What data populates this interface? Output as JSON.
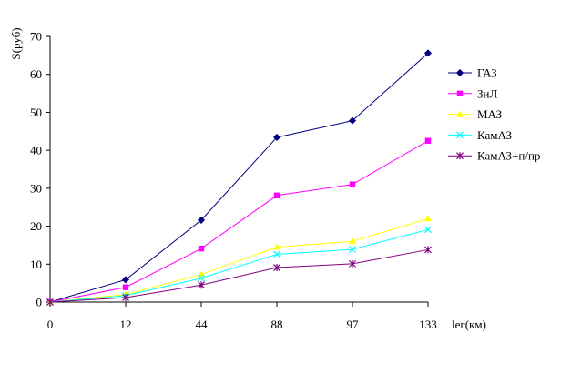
{
  "chart_data": {
    "type": "line",
    "title": "",
    "xlabel": "lег(км)",
    "ylabel": "S(руб)",
    "categories": [
      "0",
      "12",
      "44",
      "88",
      "97",
      "133"
    ],
    "ylim": [
      0,
      70
    ],
    "yticks": [
      0,
      10,
      20,
      30,
      40,
      50,
      60,
      70
    ],
    "grid": false,
    "legend_position": "right",
    "series": [
      {
        "name": "ГАЗ",
        "color": "#000080",
        "marker": "diamond",
        "values": [
          0,
          5.9,
          21.6,
          43.4,
          47.8,
          65.6
        ]
      },
      {
        "name": "ЗиЛ",
        "color": "#FF00FF",
        "marker": "square",
        "values": [
          0,
          3.9,
          14.1,
          28.1,
          31.0,
          42.5
        ]
      },
      {
        "name": "МАЗ",
        "color": "#FFFF00",
        "marker": "triangle",
        "values": [
          0,
          2.0,
          7.3,
          14.5,
          16.0,
          22.0
        ]
      },
      {
        "name": "КамАЗ",
        "color": "#00FFFF",
        "marker": "x",
        "values": [
          0,
          1.7,
          6.3,
          12.6,
          13.9,
          19.1
        ]
      },
      {
        "name": "КамАЗ+п/пр",
        "color": "#800080",
        "marker": "star",
        "values": [
          0,
          1.2,
          4.5,
          9.1,
          10.1,
          13.8
        ]
      }
    ]
  }
}
